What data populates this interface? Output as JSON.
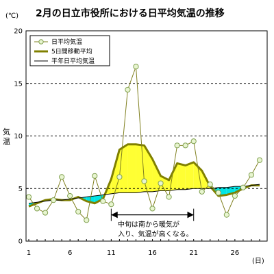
{
  "chart_data": {
    "type": "line",
    "title": "2月の日立市役所における日平均気温の推移",
    "y_unit": "(℃)",
    "ylabel": "気温",
    "x_unit": "(日)",
    "ylim": [
      0,
      20
    ],
    "y_ticks": [
      0,
      5,
      10,
      15,
      20
    ],
    "xlim": [
      1,
      29
    ],
    "x_ticks": [
      1,
      6,
      11,
      16,
      21,
      26
    ],
    "grid_dashed_y": [
      5,
      10,
      15
    ],
    "legend": {
      "position": "top-left",
      "entries": [
        "日平均気温",
        "5日間移動平均",
        "平年日平均気温"
      ]
    },
    "colors": {
      "daily": "#808020",
      "daily_marker_fill": "#e8f5d0",
      "daily_marker_edge": "#80a050",
      "moving": "#808000",
      "normal": "#000000",
      "fill_above": "#ffff33",
      "fill_below": "#00e5e5"
    },
    "series": [
      {
        "name": "日平均気温",
        "x": [
          1,
          2,
          3,
          4,
          5,
          6,
          7,
          8,
          9,
          10,
          11,
          12,
          13,
          14,
          15,
          16,
          17,
          18,
          19,
          20,
          21,
          22,
          23,
          24,
          25,
          26,
          27,
          28,
          29
        ],
        "values": [
          4.2,
          3.1,
          2.7,
          3.9,
          6.1,
          4.3,
          2.8,
          2.0,
          6.2,
          3.8,
          3.5,
          6.1,
          14.4,
          16.6,
          5.7,
          3.1,
          5.5,
          4.2,
          9.1,
          9.1,
          9.5,
          4.7,
          5.4,
          4.6,
          2.5,
          4.3,
          5.1,
          6.3,
          7.7
        ]
      },
      {
        "name": "5日間移動平均",
        "x": [
          1,
          2,
          3,
          4,
          5,
          6,
          7,
          8,
          9,
          10,
          11,
          12,
          13,
          14,
          15,
          16,
          17,
          18,
          19,
          20,
          21,
          22,
          23,
          24,
          25,
          26,
          27,
          28,
          29
        ],
        "values": [
          3.3,
          3.6,
          3.9,
          4.0,
          3.9,
          3.9,
          4.2,
          3.8,
          3.6,
          4.0,
          5.9,
          8.7,
          9.2,
          9.2,
          9.1,
          7.8,
          6.2,
          5.8,
          7.4,
          7.2,
          7.5,
          6.7,
          5.2,
          4.3,
          4.4,
          4.6,
          5.0,
          5.3,
          5.3
        ]
      },
      {
        "name": "平年日平均気温",
        "x": [
          1,
          2,
          3,
          4,
          5,
          6,
          7,
          8,
          9,
          10,
          11,
          12,
          13,
          14,
          15,
          16,
          17,
          18,
          19,
          20,
          21,
          22,
          23,
          24,
          25,
          26,
          27,
          28,
          29
        ],
        "values": [
          3.6,
          3.7,
          3.8,
          3.9,
          3.9,
          4.0,
          4.1,
          4.2,
          4.3,
          4.4,
          4.5,
          4.6,
          4.6,
          4.6,
          4.7,
          4.7,
          4.8,
          4.8,
          4.9,
          4.9,
          5.0,
          5.0,
          5.0,
          5.1,
          5.1,
          5.2,
          5.2,
          5.3,
          5.4
        ]
      }
    ],
    "annotation": {
      "lines": [
        "中旬は南から暖気が",
        "入り、気温が高くなる。"
      ],
      "x_from": 11,
      "x_to": 21,
      "y": 2.5
    }
  }
}
